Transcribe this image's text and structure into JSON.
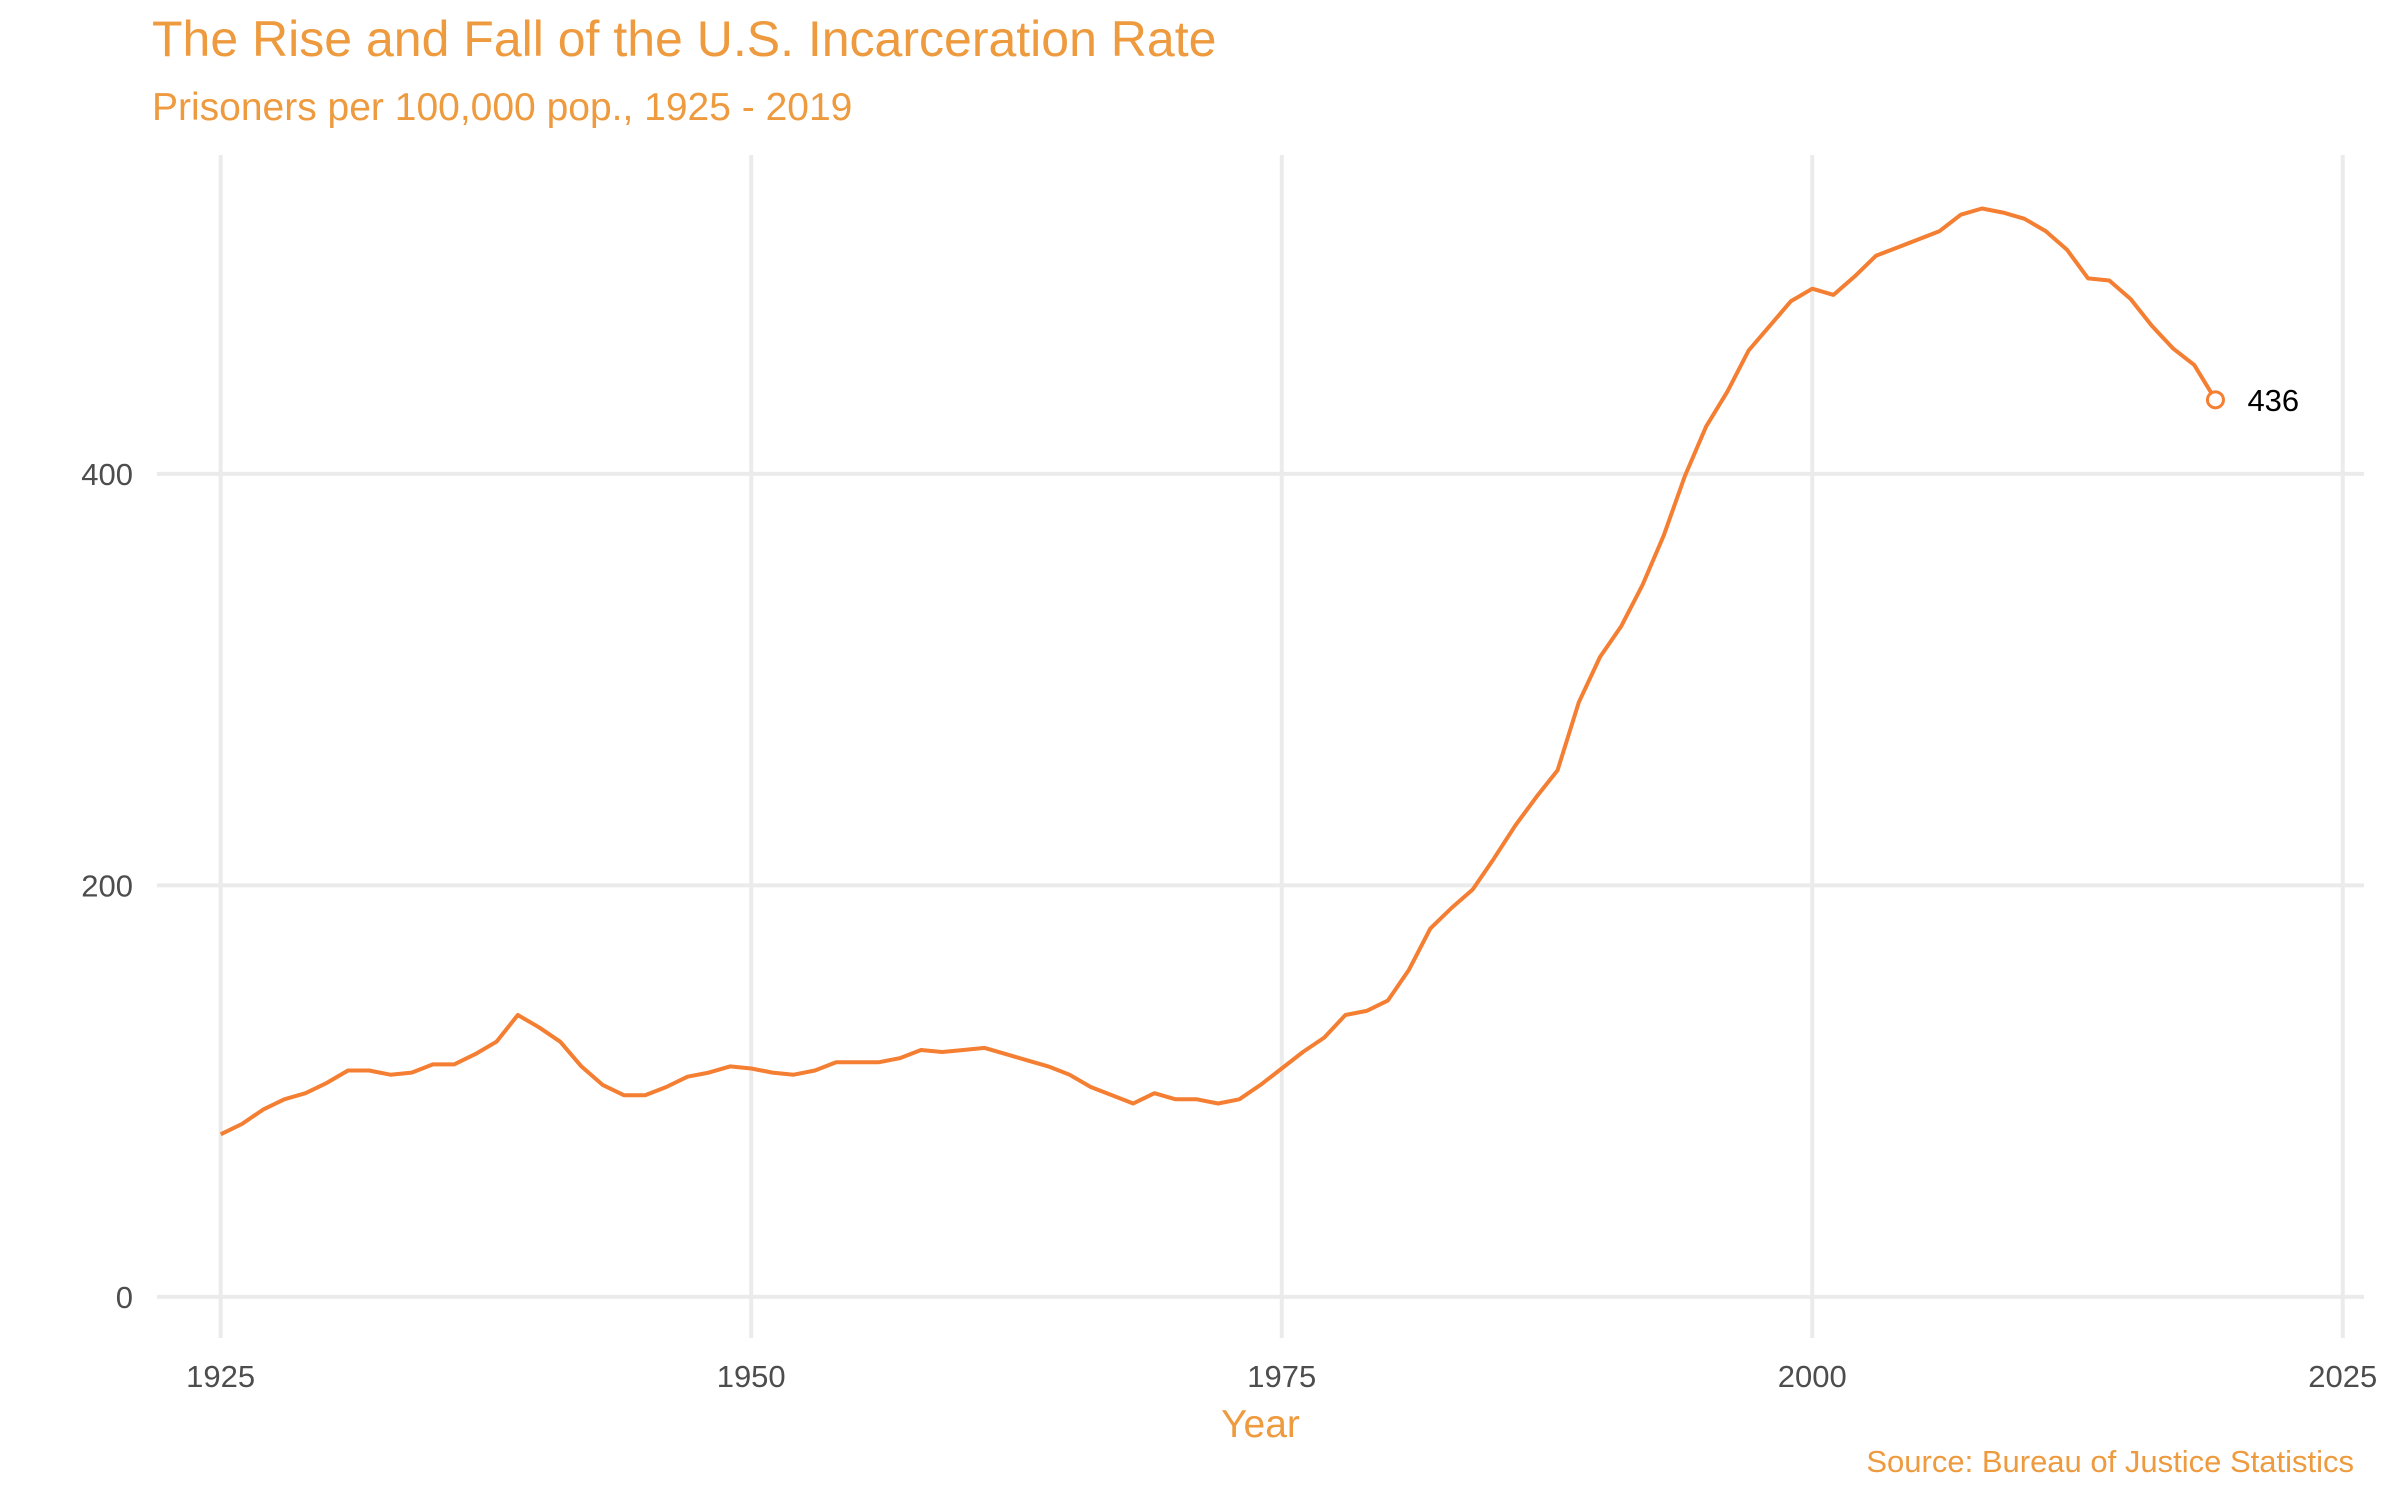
{
  "chart_data": {
    "type": "line",
    "title": "The Rise and Fall of the U.S. Incarceration Rate",
    "subtitle": "Prisoners per 100,000 pop., 1925 - 2019",
    "caption": "Source: Bureau of Justice Statistics",
    "xlabel": "Year",
    "ylabel": "",
    "xlim": [
      1922,
      2026
    ],
    "ylim": [
      -20,
      555
    ],
    "x_ticks": [
      1925,
      1950,
      1975,
      2000,
      2025
    ],
    "y_ticks": [
      0,
      200,
      400
    ],
    "grid": true,
    "line_color": "#F47E32",
    "text_color": "#EE9A3E",
    "end_label": "436",
    "x": [
      1925,
      1926,
      1927,
      1928,
      1929,
      1930,
      1931,
      1932,
      1933,
      1934,
      1935,
      1936,
      1937,
      1938,
      1939,
      1940,
      1941,
      1942,
      1943,
      1944,
      1945,
      1946,
      1947,
      1948,
      1949,
      1950,
      1951,
      1952,
      1953,
      1954,
      1955,
      1956,
      1957,
      1958,
      1959,
      1960,
      1961,
      1962,
      1963,
      1964,
      1965,
      1966,
      1967,
      1968,
      1969,
      1970,
      1971,
      1972,
      1973,
      1974,
      1975,
      1976,
      1977,
      1978,
      1979,
      1980,
      1981,
      1982,
      1983,
      1984,
      1985,
      1986,
      1987,
      1988,
      1989,
      1990,
      1991,
      1992,
      1993,
      1994,
      1995,
      1996,
      1997,
      1998,
      1999,
      2000,
      2001,
      2002,
      2003,
      2004,
      2005,
      2006,
      2007,
      2008,
      2009,
      2010,
      2011,
      2012,
      2013,
      2014,
      2015,
      2016,
      2017,
      2018,
      2019
    ],
    "y": [
      79,
      84,
      91,
      96,
      99,
      104,
      110,
      110,
      108,
      109,
      113,
      113,
      118,
      124,
      137,
      131,
      124,
      112,
      103,
      98,
      98,
      102,
      107,
      109,
      112,
      111,
      109,
      108,
      110,
      114,
      114,
      114,
      116,
      120,
      119,
      120,
      121,
      118,
      115,
      112,
      108,
      102,
      98,
      94,
      99,
      96,
      96,
      94,
      96,
      103,
      111,
      119,
      126,
      137,
      139,
      144,
      159,
      179,
      189,
      198,
      213,
      229,
      243,
      256,
      289,
      311,
      326,
      346,
      370,
      399,
      423,
      440,
      460,
      472,
      484,
      490,
      487,
      496,
      506,
      510,
      514,
      518,
      526,
      529,
      527,
      524,
      518,
      509,
      495,
      494,
      485,
      472,
      461,
      453,
      436
    ]
  }
}
